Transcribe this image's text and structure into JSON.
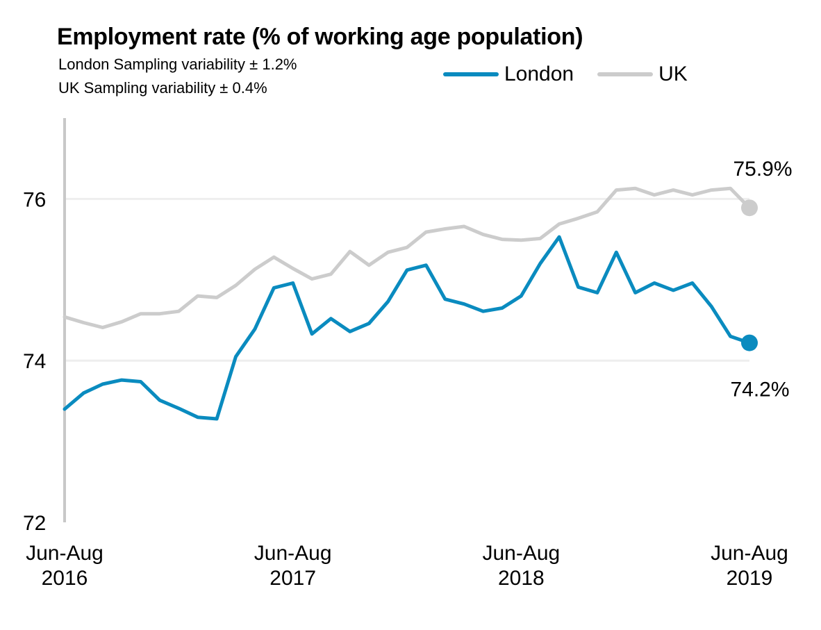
{
  "title": "Employment rate (% of working age population)",
  "subtitle_lines": [
    "London Sampling variability ± 1.2%",
    "UK Sampling variability ± 0.4%"
  ],
  "colors": {
    "london": "#0a8bbf",
    "uk": "#cccccc",
    "grid": "#eeeeee",
    "axis": "#c8c8c8"
  },
  "chart_data": {
    "type": "line",
    "title": "Employment rate (% of working age population)",
    "ylim": [
      72,
      77
    ],
    "yticks": [
      72,
      74,
      76
    ],
    "grid": true,
    "legend_position": "top-right",
    "x_tick_positions": [
      0,
      12,
      24,
      36
    ],
    "x_tick_labels": [
      [
        "Jun-Aug",
        "2016"
      ],
      [
        "Jun-Aug",
        "2017"
      ],
      [
        "Jun-Aug",
        "2018"
      ],
      [
        "Jun-Aug",
        "2019"
      ]
    ],
    "series": [
      {
        "name": "London",
        "color": "#0a8bbf",
        "end_label": "74.2%",
        "values": [
          73.4,
          73.6,
          73.71,
          73.76,
          73.74,
          73.51,
          73.41,
          73.3,
          73.28,
          74.05,
          74.39,
          74.9,
          74.96,
          74.33,
          74.52,
          74.36,
          74.46,
          74.73,
          75.12,
          75.18,
          74.76,
          74.7,
          74.61,
          74.65,
          74.8,
          75.2,
          75.53,
          74.91,
          74.84,
          75.34,
          74.84,
          74.96,
          74.87,
          74.96,
          74.67,
          74.3,
          74.22
        ]
      },
      {
        "name": "UK",
        "color": "#cccccc",
        "end_label": "75.9%",
        "values": [
          74.54,
          74.47,
          74.41,
          74.48,
          74.58,
          74.58,
          74.61,
          74.8,
          74.78,
          74.93,
          75.13,
          75.28,
          75.14,
          75.01,
          75.07,
          75.35,
          75.18,
          75.34,
          75.4,
          75.59,
          75.63,
          75.66,
          75.56,
          75.5,
          75.49,
          75.51,
          75.69,
          75.76,
          75.84,
          76.11,
          76.13,
          76.05,
          76.11,
          76.05,
          76.11,
          76.13,
          75.89
        ]
      }
    ]
  }
}
